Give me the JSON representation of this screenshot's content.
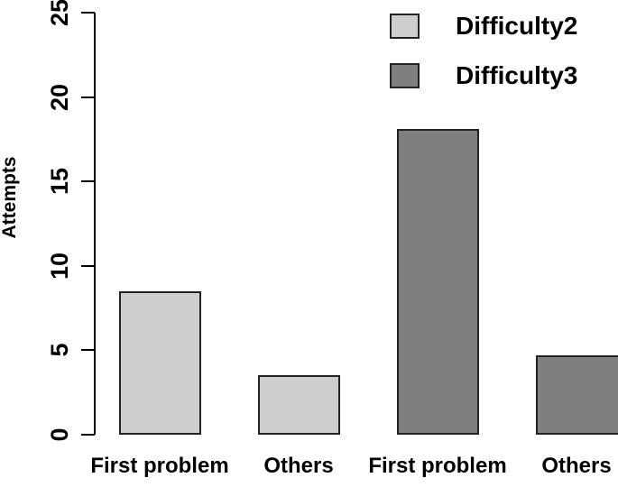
{
  "chart_data": {
    "type": "bar",
    "title": "",
    "ylabel": "Attempts",
    "xlabel": "",
    "ylim": [
      0,
      25
    ],
    "yticks": [
      0,
      5,
      10,
      15,
      20,
      25
    ],
    "categories": [
      "First problem",
      "Others"
    ],
    "series": [
      {
        "name": "Difficulty2",
        "color": "#cecece",
        "values": [
          8.5,
          3.5
        ]
      },
      {
        "name": "Difficulty3",
        "color": "#7f7f7f",
        "values": [
          18.1,
          4.7
        ]
      }
    ],
    "legend": {
      "position": "top-right",
      "entries": [
        "Difficulty2",
        "Difficulty3"
      ]
    },
    "grid": false,
    "bar_border_color": "#222222",
    "axis_color": "#000000",
    "text_color": "#000000",
    "background": "#ffffff"
  }
}
